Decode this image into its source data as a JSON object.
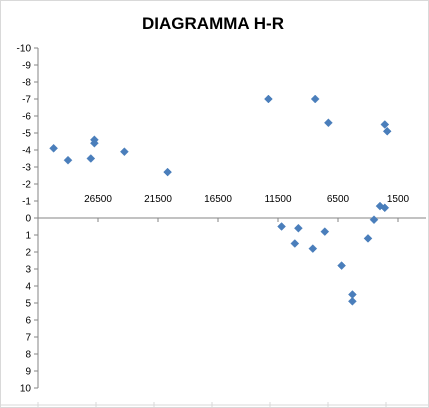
{
  "chart_data": {
    "type": "scatter",
    "title": "DIAGRAMMA H-R",
    "xlabel": "",
    "ylabel": "",
    "x_reversed": true,
    "y_reversed": true,
    "xlim": [
      31500,
      -1000
    ],
    "ylim": [
      -10,
      10
    ],
    "grid": false,
    "legend": "none",
    "x_ticks": [
      {
        "value": 26500,
        "label": "26500"
      },
      {
        "value": 21500,
        "label": "21500"
      },
      {
        "value": 16500,
        "label": "16500"
      },
      {
        "value": 11500,
        "label": "11500"
      },
      {
        "value": 6500,
        "label": "6500"
      },
      {
        "value": 1500,
        "label": "1500"
      }
    ],
    "y_ticks": [
      {
        "value": -10,
        "label": "-10"
      },
      {
        "value": -9,
        "label": "-9"
      },
      {
        "value": -8,
        "label": "-8"
      },
      {
        "value": -7,
        "label": "-7"
      },
      {
        "value": -6,
        "label": "-6"
      },
      {
        "value": -5,
        "label": "-5"
      },
      {
        "value": -4,
        "label": "-4"
      },
      {
        "value": -3,
        "label": "-3"
      },
      {
        "value": -2,
        "label": "-2"
      },
      {
        "value": -1,
        "label": "-1"
      },
      {
        "value": 0,
        "label": "0"
      },
      {
        "value": 1,
        "label": "1"
      },
      {
        "value": 2,
        "label": "2"
      },
      {
        "value": 3,
        "label": "3"
      },
      {
        "value": 4,
        "label": "4"
      },
      {
        "value": 5,
        "label": "5"
      },
      {
        "value": 6,
        "label": "6"
      },
      {
        "value": 7,
        "label": "7"
      },
      {
        "value": 8,
        "label": "8"
      },
      {
        "value": 9,
        "label": "9"
      },
      {
        "value": 10,
        "label": "10"
      }
    ],
    "series": [
      {
        "marker_color": "#4A7EBB",
        "points": [
          {
            "x": 30200,
            "y": -4.1
          },
          {
            "x": 29000,
            "y": -3.4
          },
          {
            "x": 27100,
            "y": -3.5
          },
          {
            "x": 26800,
            "y": -4.6
          },
          {
            "x": 26800,
            "y": -4.4
          },
          {
            "x": 24300,
            "y": -3.9
          },
          {
            "x": 20700,
            "y": -2.7
          },
          {
            "x": 12300,
            "y": -7.0
          },
          {
            "x": 11200,
            "y": 0.5
          },
          {
            "x": 10100,
            "y": 1.5
          },
          {
            "x": 9800,
            "y": 0.6
          },
          {
            "x": 8600,
            "y": 1.8
          },
          {
            "x": 8400,
            "y": -7.0
          },
          {
            "x": 7600,
            "y": 0.8
          },
          {
            "x": 7300,
            "y": -5.6
          },
          {
            "x": 6200,
            "y": 2.8
          },
          {
            "x": 5300,
            "y": 4.5
          },
          {
            "x": 5300,
            "y": 4.9
          },
          {
            "x": 4000,
            "y": 1.2
          },
          {
            "x": 3500,
            "y": 0.1
          },
          {
            "x": 3000,
            "y": -0.7
          },
          {
            "x": 2600,
            "y": -0.6
          },
          {
            "x": 2600,
            "y": -5.5
          },
          {
            "x": 2400,
            "y": -5.1
          }
        ]
      }
    ]
  }
}
